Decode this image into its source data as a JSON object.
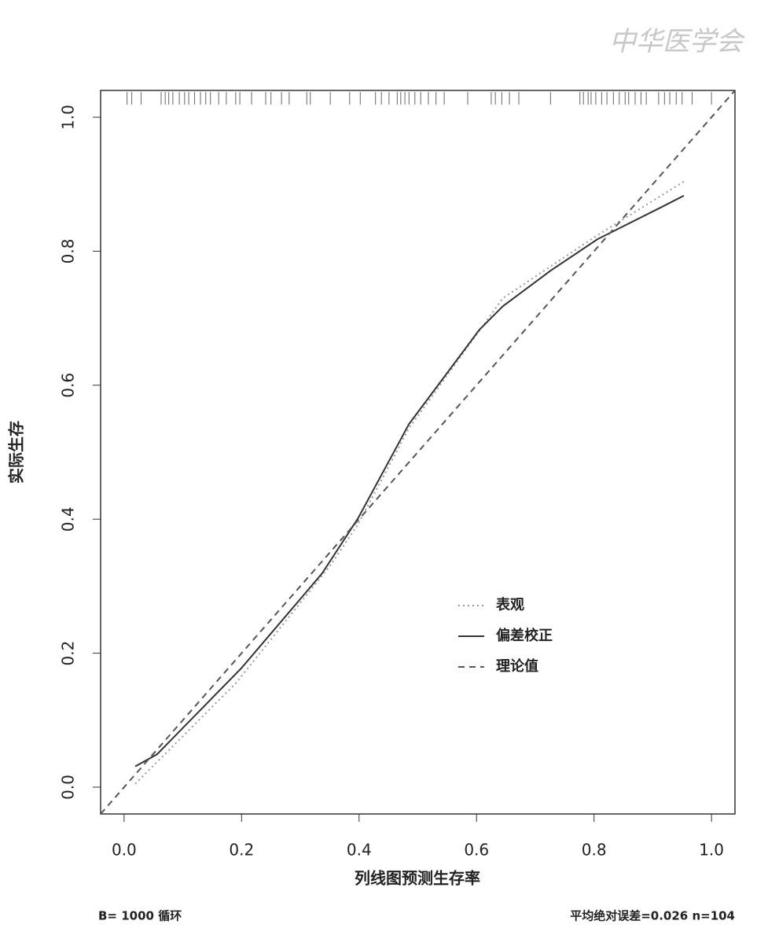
{
  "chart_data": {
    "type": "line",
    "watermark": "中华医学会",
    "xlabel": "列线图预测生存率",
    "ylabel": "实际生存",
    "footer_left": "B= 1000 循环",
    "footer_right": "平均绝对误差=0.026 n=104",
    "xlim": [
      -0.04,
      1.04
    ],
    "ylim": [
      -0.04,
      1.04
    ],
    "xticks": [
      {
        "value": 0,
        "label": "0.0"
      },
      0.2,
      0.4,
      0.6,
      0.8,
      {
        "value": 1,
        "label": "1.0"
      }
    ],
    "yticks": [
      {
        "value": 0,
        "label": "0.0"
      },
      0.2,
      0.4,
      0.6,
      0.8,
      {
        "value": 1,
        "label": "1.0"
      }
    ],
    "legend_position": "bottom-right",
    "series": [
      {
        "name": "表观",
        "color": "#999999",
        "style": "dotted",
        "x": [
          0.019,
          0.19,
          0.351,
          0.398,
          0.485,
          0.645,
          0.806,
          0.953
        ],
        "values": [
          0.005,
          0.155,
          0.331,
          0.392,
          0.536,
          0.73,
          0.824,
          0.904
        ]
      },
      {
        "name": "偏差校正",
        "color": "#333333",
        "style": "solid",
        "x": [
          0.019,
          0.056,
          0.2,
          0.337,
          0.398,
          0.485,
          0.605,
          0.645,
          0.726,
          0.806,
          0.913,
          0.953
        ],
        "values": [
          0.031,
          0.049,
          0.178,
          0.319,
          0.401,
          0.542,
          0.683,
          0.718,
          0.771,
          0.818,
          0.865,
          0.883
        ]
      },
      {
        "name": "理论值",
        "color": "#555555",
        "style": "dashed",
        "x": [
          -0.04,
          1.04
        ],
        "values": [
          -0.04,
          1.04
        ]
      }
    ],
    "rug": [
      0.005,
      0.013,
      0.029,
      0.063,
      0.07,
      0.076,
      0.083,
      0.094,
      0.103,
      0.11,
      0.12,
      0.13,
      0.139,
      0.147,
      0.161,
      0.174,
      0.19,
      0.197,
      0.217,
      0.241,
      0.25,
      0.268,
      0.281,
      0.311,
      0.317,
      0.351,
      0.384,
      0.402,
      0.428,
      0.438,
      0.451,
      0.465,
      0.471,
      0.478,
      0.485,
      0.495,
      0.505,
      0.518,
      0.531,
      0.545,
      0.585,
      0.625,
      0.632,
      0.643,
      0.656,
      0.672,
      0.726,
      0.776,
      0.782,
      0.79,
      0.795,
      0.803,
      0.813,
      0.822,
      0.833,
      0.843,
      0.853,
      0.859,
      0.87,
      0.88,
      0.889,
      0.91,
      0.92,
      0.929,
      0.94,
      0.95,
      0.967,
      1.0
    ]
  }
}
